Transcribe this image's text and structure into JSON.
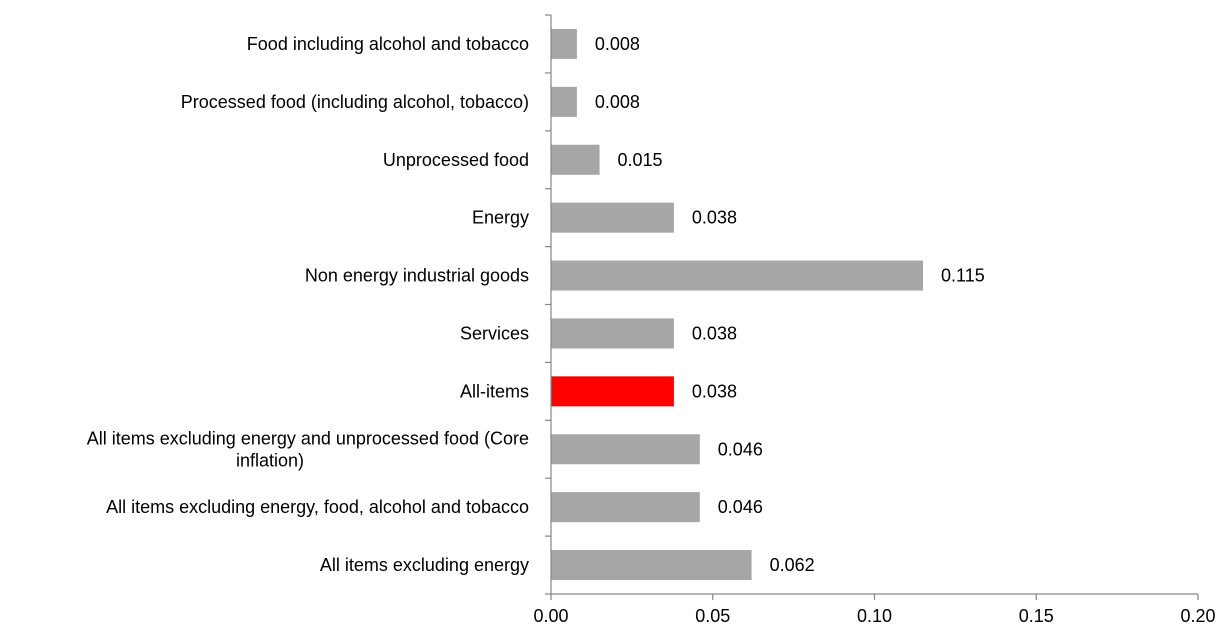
{
  "chart_data": {
    "type": "bar",
    "orientation": "horizontal",
    "categories": [
      [
        "Food including alcohol and tobacco"
      ],
      [
        "Processed food (including alcohol, tobacco)"
      ],
      [
        "Unprocessed food"
      ],
      [
        "Energy"
      ],
      [
        "Non energy industrial goods"
      ],
      [
        "Services"
      ],
      [
        "All-items"
      ],
      [
        "All items excluding energy and unprocessed food (Core",
        "inflation)"
      ],
      [
        "All items excluding energy, food, alcohol and tobacco"
      ],
      [
        "All items excluding energy"
      ]
    ],
    "values": [
      0.008,
      0.008,
      0.015,
      0.038,
      0.115,
      0.038,
      0.038,
      0.046,
      0.046,
      0.062
    ],
    "value_labels": [
      "0.008",
      "0.008",
      "0.015",
      "0.038",
      "0.115",
      "0.038",
      "0.038",
      "0.046",
      "0.046",
      "0.062"
    ],
    "xlim": [
      0,
      0.2
    ],
    "x_ticks": [
      "0.00",
      "0.05",
      "0.10",
      "0.15",
      "0.20"
    ],
    "title": "",
    "xlabel": "",
    "ylabel": "",
    "grid": false,
    "legend": "none",
    "colors": {
      "bar": "#A6A6A6",
      "highlight": "#FF0000",
      "axis": "#868686"
    },
    "highlight_index": 6
  }
}
